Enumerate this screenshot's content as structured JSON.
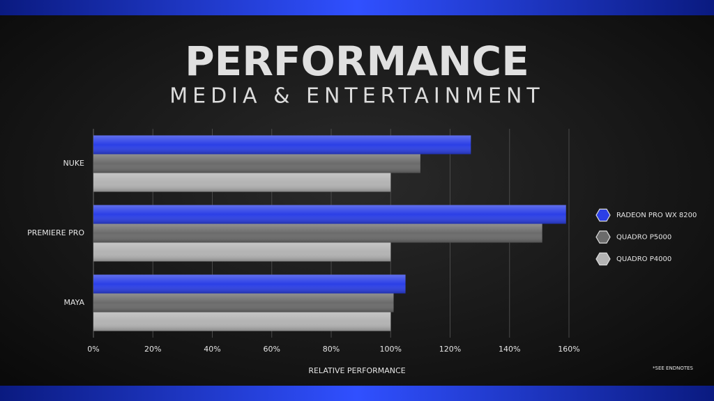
{
  "chart_data": {
    "type": "bar",
    "orientation": "horizontal",
    "title": "PERFORMANCE",
    "subtitle": "MEDIA & ENTERTAINMENT",
    "x_label": "RELATIVE PERFORMANCE",
    "note": "*SEE ENDNOTES",
    "categories": [
      "NUKE",
      "PREMIERE PRO",
      "MAYA"
    ],
    "series": [
      {
        "name": "RADEON PRO WX 8200",
        "color": "#2b3fe6",
        "values": [
          127,
          159,
          105
        ]
      },
      {
        "name": "QUADRO P5000",
        "color": "#6b6b6b",
        "values": [
          110,
          151,
          101
        ]
      },
      {
        "name": "QUADRO P4000",
        "color": "#b3b3b3",
        "values": [
          100,
          100,
          100
        ]
      }
    ],
    "xlim": [
      0,
      160
    ],
    "xticks": [
      {
        "value": 0,
        "label": "0%"
      },
      {
        "value": 20,
        "label": "20%"
      },
      {
        "value": 40,
        "label": "40%"
      },
      {
        "value": 60,
        "label": "60%"
      },
      {
        "value": 80,
        "label": "80%"
      },
      {
        "value": 100,
        "label": "100%"
      },
      {
        "value": 120,
        "label": "120%"
      },
      {
        "value": 140,
        "label": "140%"
      },
      {
        "value": 160,
        "label": "160%"
      }
    ],
    "grid": true,
    "legend": "right"
  }
}
